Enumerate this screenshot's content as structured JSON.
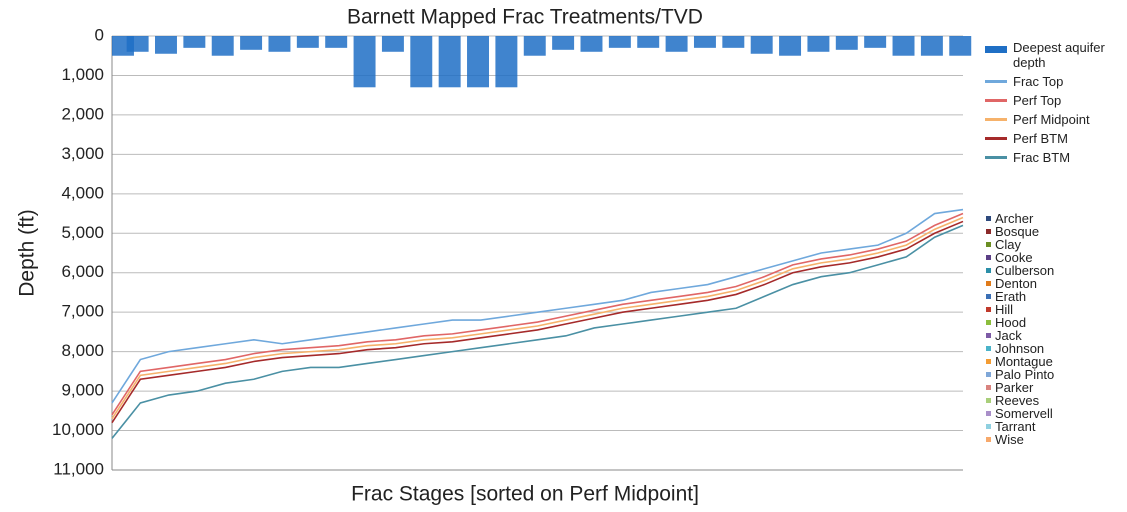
{
  "chart_data": {
    "type": "line",
    "title": "Barnett Mapped Frac Treatments/TVD",
    "x_label": "Frac Stages [sorted on Perf Midpoint]",
    "y_label": "Depth (ft)",
    "y_inverted": true,
    "grid": true,
    "ylim": [
      0,
      11000
    ],
    "yticks": [
      0,
      {
        "value": 1000,
        "label": "1,000"
      },
      {
        "value": 2000,
        "label": "2,000"
      },
      {
        "value": 3000,
        "label": "3,000"
      },
      {
        "value": 4000,
        "label": "4,000"
      },
      {
        "value": 5000,
        "label": "5,000"
      },
      {
        "value": 6000,
        "label": "6,000"
      },
      {
        "value": 7000,
        "label": "7,000"
      },
      {
        "value": 8000,
        "label": "8,000"
      },
      {
        "value": 9000,
        "label": "9,000"
      },
      {
        "value": 10000,
        "label": "10,000"
      },
      {
        "value": 11000,
        "label": "11,000"
      }
    ],
    "xlim": [
      0,
      30
    ],
    "x": [
      0,
      1,
      2,
      3,
      4,
      5,
      6,
      7,
      8,
      9,
      10,
      11,
      12,
      13,
      14,
      15,
      16,
      17,
      18,
      19,
      20,
      21,
      22,
      23,
      24,
      25,
      26,
      27,
      28,
      29,
      30
    ],
    "series": [
      {
        "name": "Deepest aquifer depth",
        "color": "#1f6fc5",
        "kind": "bar",
        "values": [
          500,
          400,
          450,
          300,
          500,
          350,
          400,
          300,
          300,
          1300,
          400,
          1300,
          1300,
          1300,
          1300,
          500,
          350,
          400,
          300,
          300,
          400,
          300,
          300,
          450,
          500,
          400,
          350,
          300,
          500,
          500,
          500
        ]
      },
      {
        "name": "Frac Top",
        "color": "#6fa8dc",
        "kind": "line",
        "values": [
          9300,
          8200,
          8000,
          7900,
          7800,
          7700,
          7800,
          7700,
          7600,
          7500,
          7400,
          7300,
          7200,
          7200,
          7100,
          7000,
          6900,
          6800,
          6700,
          6500,
          6400,
          6300,
          6100,
          5900,
          5700,
          5500,
          5400,
          5300,
          5000,
          4500,
          4400
        ]
      },
      {
        "name": "Perf Top",
        "color": "#e06666",
        "kind": "line",
        "values": [
          9600,
          8500,
          8400,
          8300,
          8200,
          8050,
          7950,
          7900,
          7850,
          7750,
          7700,
          7600,
          7550,
          7450,
          7350,
          7250,
          7100,
          6950,
          6800,
          6700,
          6600,
          6500,
          6350,
          6100,
          5800,
          5650,
          5550,
          5400,
          5200,
          4800,
          4500
        ]
      },
      {
        "name": "Perf Midpoint",
        "color": "#f6b26b",
        "kind": "line",
        "values": [
          9700,
          8600,
          8500,
          8400,
          8300,
          8150,
          8050,
          8000,
          7950,
          7850,
          7800,
          7700,
          7650,
          7550,
          7450,
          7350,
          7200,
          7050,
          6900,
          6800,
          6700,
          6600,
          6450,
          6200,
          5900,
          5750,
          5650,
          5500,
          5300,
          4900,
          4600
        ]
      },
      {
        "name": "Perf BTM",
        "color": "#a52a2a",
        "kind": "line",
        "values": [
          9800,
          8700,
          8600,
          8500,
          8400,
          8250,
          8150,
          8100,
          8050,
          7950,
          7900,
          7800,
          7750,
          7650,
          7550,
          7450,
          7300,
          7150,
          7000,
          6900,
          6800,
          6700,
          6550,
          6300,
          6000,
          5850,
          5750,
          5600,
          5400,
          5000,
          4700
        ]
      },
      {
        "name": "Frac BTM",
        "color": "#4a90a4",
        "kind": "line",
        "values": [
          10200,
          9300,
          9100,
          9000,
          8800,
          8700,
          8500,
          8400,
          8400,
          8300,
          8200,
          8100,
          8000,
          7900,
          7800,
          7700,
          7600,
          7400,
          7300,
          7200,
          7100,
          7000,
          6900,
          6600,
          6300,
          6100,
          6000,
          5800,
          5600,
          5100,
          4800
        ]
      }
    ],
    "county_legend": [
      {
        "name": "Archer",
        "color": "#2e4a7d"
      },
      {
        "name": "Bosque",
        "color": "#8b2a2a"
      },
      {
        "name": "Clay",
        "color": "#6b8e23"
      },
      {
        "name": "Cooke",
        "color": "#5b3f86"
      },
      {
        "name": "Culberson",
        "color": "#2b8fa8"
      },
      {
        "name": "Denton",
        "color": "#e07b1a"
      },
      {
        "name": "Erath",
        "color": "#3a6fb5"
      },
      {
        "name": "Hill",
        "color": "#c0392b"
      },
      {
        "name": "Hood",
        "color": "#8bbd3c"
      },
      {
        "name": "Jack",
        "color": "#7d5ba6"
      },
      {
        "name": "Johnson",
        "color": "#4ab3c9"
      },
      {
        "name": "Montague",
        "color": "#f39c33"
      },
      {
        "name": "Palo Pinto",
        "color": "#7fa7d8"
      },
      {
        "name": "Parker",
        "color": "#d9837f"
      },
      {
        "name": "Reeves",
        "color": "#a9cf7a"
      },
      {
        "name": "Somervell",
        "color": "#a98fc9"
      },
      {
        "name": "Tarrant",
        "color": "#8fd0e0"
      },
      {
        "name": "Wise",
        "color": "#f7a96b"
      }
    ]
  }
}
